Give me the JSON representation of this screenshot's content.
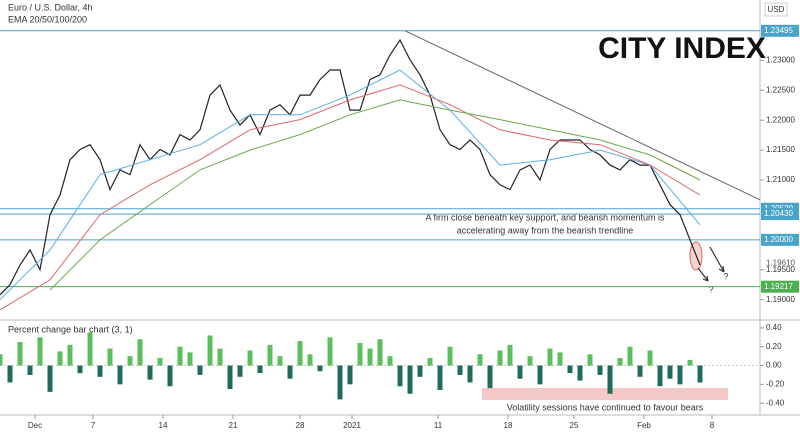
{
  "chart_data": [
    {
      "type": "line",
      "title": "Euro / U.S. Dollar, 4h",
      "subtitle": "EMA 20/50/100/200",
      "y_unit": "USD",
      "logo": "CITY INDEX",
      "xlim": [
        0,
        76
      ],
      "ylim": [
        1.1866,
        1.2401
      ],
      "yticks": [
        {
          "value": 1.23,
          "label": "1.23000"
        },
        {
          "value": 1.225,
          "label": "1.22500"
        },
        {
          "value": 1.22,
          "label": "1.22000"
        },
        {
          "value": 1.215,
          "label": "1.21500"
        },
        {
          "value": 1.21,
          "label": "1.21000"
        },
        {
          "value": 1.195,
          "label": "1.19500"
        },
        {
          "value": 1.19,
          "label": "1.19000"
        }
      ],
      "x": [
        0,
        1,
        2,
        3,
        4,
        5,
        6,
        7,
        8,
        9,
        10,
        11,
        12,
        13,
        14,
        15,
        16,
        17,
        18,
        19,
        20,
        21,
        22,
        23,
        24,
        25,
        26,
        27,
        28,
        29,
        30,
        31,
        32,
        33,
        34,
        35,
        36,
        37,
        38,
        39,
        40,
        41,
        42,
        43,
        44,
        45,
        46,
        47,
        48,
        49,
        50,
        51,
        52,
        53,
        54,
        55,
        56,
        57,
        58,
        59,
        60,
        61,
        62,
        63,
        64,
        65,
        66,
        67,
        68,
        69,
        70
      ],
      "series": [
        {
          "color": "#222222",
          "values": [
            1.1908,
            1.1925,
            1.1958,
            1.1983,
            1.195,
            1.2042,
            1.2075,
            1.2134,
            1.2151,
            1.2159,
            1.2134,
            1.2084,
            1.2117,
            1.2109,
            1.2159,
            1.2134,
            1.2151,
            1.2142,
            1.2176,
            1.2167,
            1.2184,
            1.2242,
            1.2259,
            1.2217,
            1.2192,
            1.2209,
            1.2176,
            1.2217,
            1.2226,
            1.2209,
            1.2242,
            1.2242,
            1.2268,
            1.2284,
            1.2284,
            1.2217,
            1.2217,
            1.2268,
            1.2276,
            1.2309,
            1.2334,
            1.2301,
            1.2276,
            1.2242,
            1.2184,
            1.2159,
            1.2151,
            1.2167,
            1.2151,
            1.2109,
            1.2092,
            1.2084,
            1.2117,
            1.2125,
            1.21,
            1.2151,
            1.2167,
            1.2167,
            1.2167,
            1.2151,
            1.2142,
            1.2125,
            1.2117,
            1.2134,
            1.2125,
            1.2125,
            1.2092,
            1.2059,
            1.2042,
            1.2,
            1.1958
          ]
        },
        {
          "color": "#5aaee8",
          "x": [
            0,
            5,
            10,
            15,
            20,
            25,
            30,
            35,
            40,
            45,
            50,
            55,
            60,
            65,
            70
          ],
          "values": [
            1.19,
            1.1983,
            1.2109,
            1.2134,
            1.2159,
            1.2209,
            1.2209,
            1.2242,
            1.2284,
            1.2217,
            1.2125,
            1.2134,
            1.215,
            1.2125,
            1.2025
          ]
        },
        {
          "color": "#e06666",
          "x": [
            0,
            5,
            10,
            15,
            20,
            25,
            30,
            35,
            40,
            45,
            50,
            55,
            60,
            65,
            70
          ],
          "values": [
            1.1883,
            1.1933,
            1.2042,
            1.2092,
            1.2134,
            1.2184,
            1.2201,
            1.2234,
            1.2259,
            1.2226,
            1.2184,
            1.2167,
            1.2159,
            1.2125,
            1.2075
          ]
        },
        {
          "color": "#6aa84f",
          "x": [
            5,
            10,
            15,
            20,
            25,
            30,
            35,
            40,
            45,
            50,
            55,
            60,
            65,
            70
          ],
          "values": [
            1.1916,
            1.2,
            1.2059,
            1.2117,
            1.215,
            1.2176,
            1.2209,
            1.2234,
            1.2217,
            1.2201,
            1.2184,
            1.2167,
            1.2142,
            1.21
          ]
        }
      ],
      "levels": [
        {
          "value": 1.23495,
          "color": "#4aa3c9"
        },
        {
          "value": 1.2052,
          "label": "1.20520",
          "color": "#4aa3c9"
        },
        {
          "value": 1.2043,
          "label": "1.20430",
          "color": "#4aa3c9"
        },
        {
          "value": 1.2,
          "label": "1.20000",
          "color": "#4aa3c9"
        },
        {
          "value": 1.19217,
          "color": "#4caf50"
        }
      ],
      "last_price": {
        "value": 1.1961,
        "label": "1.19610"
      },
      "trendline": {
        "x": [
          40.5,
          76
        ],
        "values": [
          1.23495,
          1.2067
        ],
        "color": "#666666"
      },
      "annotations": {
        "note": [
          "A firm close beneath key support, and bearish momentum is",
          "accelerating away from the bearish trendline"
        ],
        "questions": [
          "?",
          "?"
        ]
      }
    },
    {
      "type": "bar",
      "title": "Percent change bar chart (3, 1)",
      "up_color": "#5cbf5c",
      "down_color": "#1f6b5e",
      "xlim": [
        0,
        76
      ],
      "ylim": [
        -0.526,
        0.463
      ],
      "yticks": [
        {
          "value": 0.4,
          "label": "0.40"
        },
        {
          "value": 0.2,
          "label": "0.20"
        },
        {
          "value": 0,
          "label": "0.00"
        },
        {
          "value": -0.2,
          "label": "-0.20"
        },
        {
          "value": -0.4,
          "label": "-0.40"
        }
      ],
      "xticks": [
        {
          "value": 3.5,
          "label": "Dec"
        },
        {
          "value": 9.3,
          "label": "7"
        },
        {
          "value": 16.3,
          "label": "14"
        },
        {
          "value": 23.3,
          "label": "21"
        },
        {
          "value": 30,
          "label": "28"
        },
        {
          "value": 35.2,
          "label": "2021"
        },
        {
          "value": 43.8,
          "label": "11"
        },
        {
          "value": 50.8,
          "label": "18"
        },
        {
          "value": 57.4,
          "label": "25"
        },
        {
          "value": 64.4,
          "label": "Feb"
        },
        {
          "value": 71.2,
          "label": "8"
        }
      ],
      "x": [
        0,
        1,
        2,
        3,
        4,
        5,
        6,
        7,
        8,
        9,
        10,
        11,
        12,
        13,
        14,
        15,
        16,
        17,
        18,
        19,
        20,
        21,
        22,
        23,
        24,
        25,
        26,
        27,
        28,
        29,
        30,
        31,
        32,
        33,
        34,
        35,
        36,
        37,
        38,
        39,
        40,
        41,
        42,
        43,
        44,
        45,
        46,
        47,
        48,
        49,
        50,
        51,
        52,
        53,
        54,
        55,
        56,
        57,
        58,
        59,
        60,
        61,
        62,
        63,
        64,
        65,
        66,
        67,
        68,
        69,
        70
      ],
      "values": [
        0.12,
        -0.18,
        0.25,
        -0.1,
        0.3,
        -0.28,
        0.15,
        0.22,
        -0.08,
        0.35,
        -0.12,
        0.18,
        -0.2,
        0.1,
        0.28,
        -0.15,
        0.08,
        -0.22,
        0.2,
        0.14,
        -0.1,
        0.32,
        0.18,
        -0.25,
        -0.12,
        0.16,
        -0.08,
        0.22,
        0.1,
        -0.14,
        0.26,
        0.12,
        -0.06,
        0.3,
        -0.36,
        -0.2,
        0.24,
        0.18,
        0.28,
        0.1,
        -0.22,
        -0.3,
        -0.12,
        0.08,
        -0.26,
        0.2,
        -0.1,
        -0.18,
        0.12,
        -0.24,
        0.16,
        0.22,
        -0.14,
        0.1,
        -0.2,
        0.18,
        0.14,
        -0.08,
        -0.16,
        0.12,
        -0.1,
        -0.3,
        0.08,
        0.2,
        -0.12,
        0.16,
        -0.22,
        -0.14,
        -0.2,
        0.06,
        -0.18
      ],
      "annotation": "Volatility sessions have continued to favour bears"
    }
  ]
}
